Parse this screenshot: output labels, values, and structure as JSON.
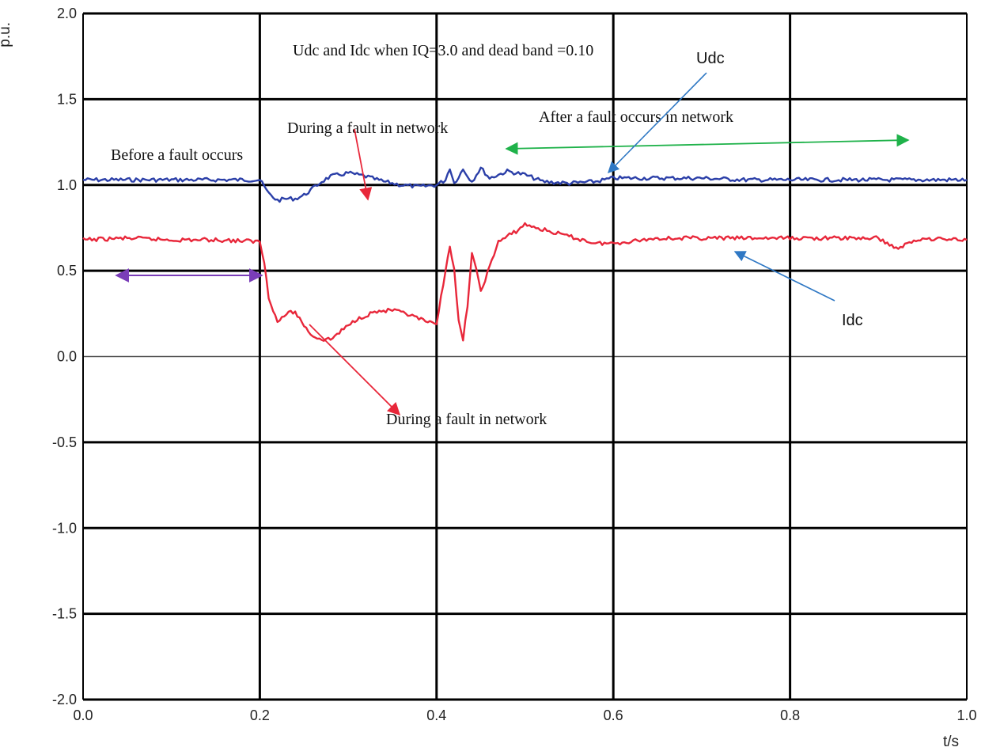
{
  "chart_data": {
    "type": "line",
    "title": "Udc and Idc when IQ=3.0 and dead band =0.10",
    "xlabel": "t/s",
    "ylabel": "p.u.",
    "xlim": [
      0,
      1.0
    ],
    "ylim": [
      -2.0,
      2.0
    ],
    "grid": true,
    "x_ticks": [
      "0.0",
      "0.2",
      "0.4",
      "0.6",
      "0.8",
      "1.0"
    ],
    "y_ticks": [
      "2.0",
      "1.5",
      "1.0",
      "0.5",
      "0.0",
      "-0.5",
      "-1.0",
      "-1.5",
      "-2.0"
    ],
    "x_tick_values": [
      0,
      0.2,
      0.4,
      0.6,
      0.8,
      1.0
    ],
    "y_tick_values": [
      2.0,
      1.5,
      1.0,
      0.5,
      0.0,
      -0.5,
      -1.0,
      -1.5,
      -2.0
    ],
    "series": [
      {
        "name": "Udc",
        "color": "#2b3fa8",
        "points": [
          [
            0.0,
            1.03
          ],
          [
            0.05,
            1.03
          ],
          [
            0.1,
            1.03
          ],
          [
            0.15,
            1.03
          ],
          [
            0.2,
            1.03
          ],
          [
            0.21,
            0.95
          ],
          [
            0.22,
            0.91
          ],
          [
            0.23,
            0.92
          ],
          [
            0.24,
            0.92
          ],
          [
            0.25,
            0.94
          ],
          [
            0.26,
            0.98
          ],
          [
            0.27,
            1.02
          ],
          [
            0.28,
            1.05
          ],
          [
            0.3,
            1.07
          ],
          [
            0.32,
            1.05
          ],
          [
            0.34,
            1.02
          ],
          [
            0.36,
            1.0
          ],
          [
            0.38,
            0.99
          ],
          [
            0.4,
            1.0
          ],
          [
            0.41,
            1.03
          ],
          [
            0.415,
            1.1
          ],
          [
            0.42,
            1.01
          ],
          [
            0.43,
            1.09
          ],
          [
            0.44,
            1.02
          ],
          [
            0.45,
            1.1
          ],
          [
            0.46,
            1.04
          ],
          [
            0.48,
            1.08
          ],
          [
            0.5,
            1.06
          ],
          [
            0.52,
            1.02
          ],
          [
            0.55,
            1.01
          ],
          [
            0.58,
            1.02
          ],
          [
            0.6,
            1.04
          ],
          [
            0.65,
            1.04
          ],
          [
            0.7,
            1.04
          ],
          [
            0.75,
            1.03
          ],
          [
            0.8,
            1.03
          ],
          [
            0.85,
            1.03
          ],
          [
            0.9,
            1.03
          ],
          [
            0.95,
            1.03
          ],
          [
            1.0,
            1.03
          ]
        ]
      },
      {
        "name": "Idc",
        "color": "#e8273a",
        "points": [
          [
            0.0,
            0.68
          ],
          [
            0.05,
            0.69
          ],
          [
            0.1,
            0.68
          ],
          [
            0.15,
            0.68
          ],
          [
            0.2,
            0.67
          ],
          [
            0.205,
            0.55
          ],
          [
            0.21,
            0.35
          ],
          [
            0.22,
            0.2
          ],
          [
            0.23,
            0.25
          ],
          [
            0.24,
            0.26
          ],
          [
            0.25,
            0.18
          ],
          [
            0.26,
            0.12
          ],
          [
            0.27,
            0.1
          ],
          [
            0.28,
            0.1
          ],
          [
            0.29,
            0.14
          ],
          [
            0.31,
            0.22
          ],
          [
            0.33,
            0.26
          ],
          [
            0.35,
            0.27
          ],
          [
            0.37,
            0.24
          ],
          [
            0.39,
            0.2
          ],
          [
            0.4,
            0.18
          ],
          [
            0.405,
            0.35
          ],
          [
            0.41,
            0.5
          ],
          [
            0.415,
            0.65
          ],
          [
            0.42,
            0.5
          ],
          [
            0.425,
            0.2
          ],
          [
            0.43,
            0.1
          ],
          [
            0.435,
            0.3
          ],
          [
            0.44,
            0.6
          ],
          [
            0.445,
            0.5
          ],
          [
            0.45,
            0.38
          ],
          [
            0.46,
            0.52
          ],
          [
            0.47,
            0.67
          ],
          [
            0.49,
            0.73
          ],
          [
            0.5,
            0.77
          ],
          [
            0.52,
            0.74
          ],
          [
            0.55,
            0.7
          ],
          [
            0.58,
            0.66
          ],
          [
            0.6,
            0.66
          ],
          [
            0.65,
            0.69
          ],
          [
            0.7,
            0.69
          ],
          [
            0.75,
            0.69
          ],
          [
            0.8,
            0.69
          ],
          [
            0.85,
            0.69
          ],
          [
            0.9,
            0.69
          ],
          [
            0.92,
            0.63
          ],
          [
            0.95,
            0.69
          ],
          [
            1.0,
            0.68
          ]
        ]
      }
    ],
    "annotations": {
      "before": "Before a fault occurs",
      "during_top": "During a fault in network",
      "after": "After a fault occurs in network",
      "during_bottom": "During a fault in network",
      "udc_label": "Udc",
      "idc_label": "Idc"
    },
    "arrow_colors": {
      "purple": "#7a3db8",
      "red": "#e8273a",
      "green": "#1fb24a",
      "blue": "#2f78c4"
    }
  }
}
